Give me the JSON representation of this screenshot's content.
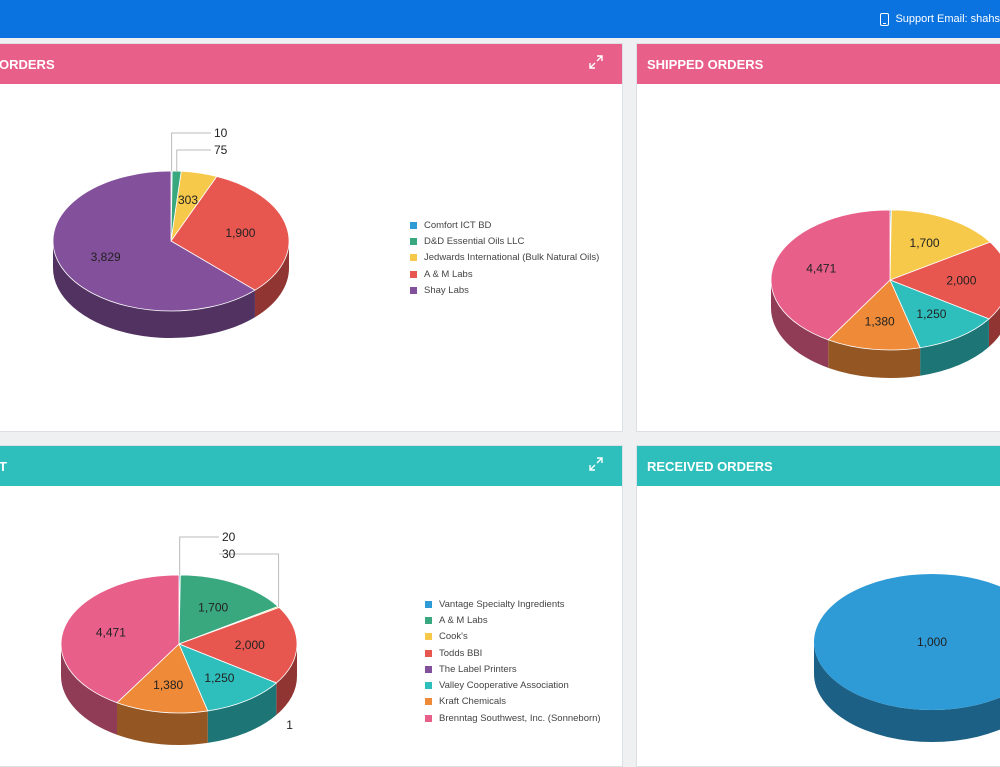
{
  "header": {
    "support_text": "Support Email: shahs",
    "support_icon": "phone-icon"
  },
  "panels": [
    {
      "id": "top-left",
      "title": "ORDERS",
      "color": "#e8608a",
      "legend": [
        {
          "label": "Comfort ICT BD",
          "color": "#2e9bd6"
        },
        {
          "label": "D&D Essential Oils LLC",
          "color": "#3aa87f"
        },
        {
          "label": "Jedwards International (Bulk Natural Oils)",
          "color": "#f6c94a"
        },
        {
          "label": "A & M Labs",
          "color": "#e85650"
        },
        {
          "label": "Shay Labs",
          "color": "#83509c"
        }
      ]
    },
    {
      "id": "top-right",
      "title": "SHIPPED ORDERS",
      "color": "#e8608a",
      "legend": []
    },
    {
      "id": "bottom-left",
      "title": "T",
      "color": "#2ebfbd",
      "legend": [
        {
          "label": "Vantage Specialty Ingredients",
          "color": "#2e9bd6"
        },
        {
          "label": "A & M Labs",
          "color": "#3aa87f"
        },
        {
          "label": "Cook's",
          "color": "#f6c94a"
        },
        {
          "label": "Todds BBI",
          "color": "#e85650"
        },
        {
          "label": "The Label Printers",
          "color": "#83509c"
        },
        {
          "label": "Valley Cooperative Association",
          "color": "#2ebfbd"
        },
        {
          "label": "Kraft Chemicals",
          "color": "#ee8a38"
        },
        {
          "label": "Brenntag Southwest, Inc. (Sonneborn)",
          "color": "#e8608a"
        }
      ]
    },
    {
      "id": "bottom-right",
      "title": "RECEIVED ORDERS",
      "color": "#2ebfbd",
      "legend": []
    }
  ],
  "chart_data": [
    {
      "type": "pie",
      "title": "",
      "categories": [
        "Comfort ICT BD",
        "D&D Essential Oils LLC",
        "Jedwards International (Bulk Natural Oils)",
        "A & M Labs",
        "Shay Labs"
      ],
      "values": [
        10,
        75,
        303,
        1900,
        3829
      ],
      "labels": [
        "10",
        "75",
        "303",
        "1,900",
        "3,829"
      ],
      "colors": [
        "#2e9bd6",
        "#3aa87f",
        "#f6c94a",
        "#e85650",
        "#83509c"
      ],
      "legend": "right"
    },
    {
      "type": "pie",
      "title": "",
      "values": [
        20,
        1700,
        2000,
        1250,
        1380,
        4471
      ],
      "labels": [
        "",
        "1,700",
        "2,000",
        "1,250",
        "1,380",
        "4,471"
      ],
      "colors": [
        "#2e9bd6",
        "#f6c94a",
        "#e85650",
        "#2ebfbd",
        "#ee8a38",
        "#e8608a"
      ],
      "legend": "none"
    },
    {
      "type": "pie",
      "title": "",
      "categories": [
        "Vantage Specialty Ingredients",
        "A & M Labs",
        "Cook's",
        "Todds BBI",
        "The Label Printers",
        "Valley Cooperative Association",
        "Kraft Chemicals",
        "Brenntag Southwest, Inc. (Sonneborn)"
      ],
      "values": [
        20,
        1700,
        30,
        2000,
        1,
        1250,
        1380,
        4471
      ],
      "labels": [
        "20",
        "1,700",
        "30",
        "2,000",
        "1",
        "1,250",
        "1,380",
        "4,471"
      ],
      "colors": [
        "#2e9bd6",
        "#3aa87f",
        "#f6c94a",
        "#e85650",
        "#83509c",
        "#2ebfbd",
        "#ee8a38",
        "#e8608a"
      ],
      "legend": "right"
    },
    {
      "type": "pie",
      "title": "",
      "values": [
        1000
      ],
      "labels": [
        "1,000"
      ],
      "colors": [
        "#2e9bd6"
      ],
      "legend": "none"
    }
  ]
}
